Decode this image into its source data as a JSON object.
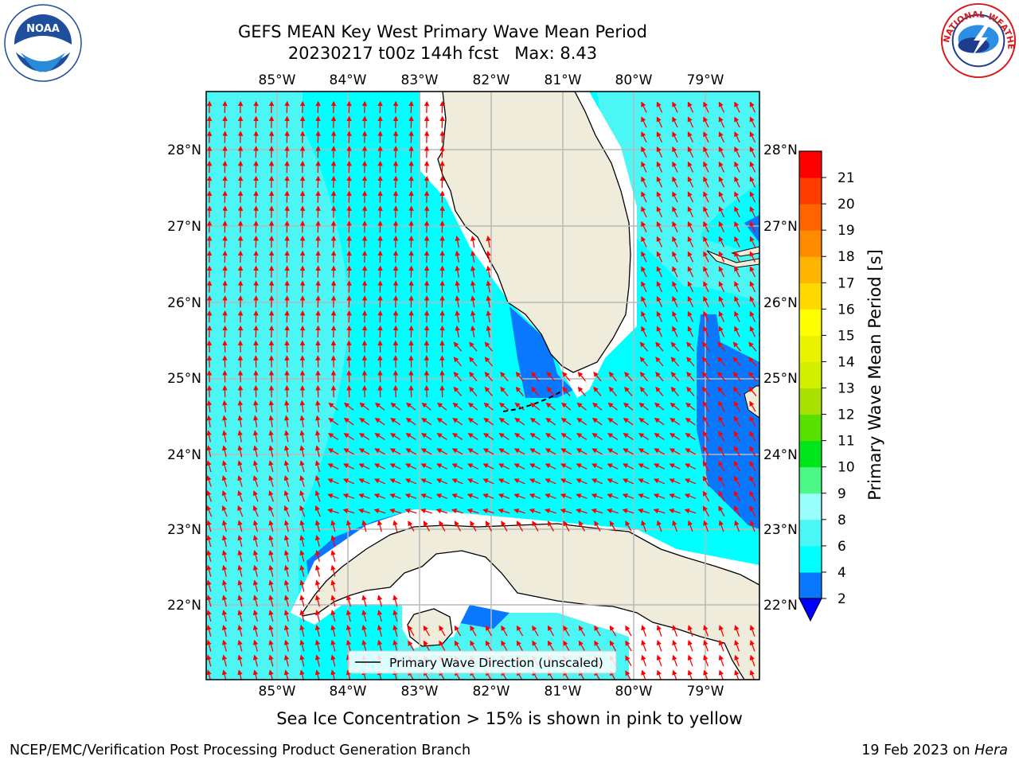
{
  "header": {
    "title_line1": "GEFS MEAN Key West Primary Wave Mean Period",
    "title_line2": "20230217 t00z 144h fcst   Max: 8.43"
  },
  "map": {
    "lon_labels": [
      "85°W",
      "84°W",
      "83°W",
      "82°W",
      "81°W",
      "80°W",
      "79°W"
    ],
    "lat_labels": [
      "28°N",
      "27°N",
      "26°N",
      "25°N",
      "24°N",
      "23°N",
      "22°N"
    ],
    "legend_label": "Primary Wave Direction (unscaled)",
    "land_color": "#efecdc",
    "ocean_main_color": "#00ffff",
    "ocean_low_color": "#0a77ff",
    "ocean_mid_color": "#4cf6f4",
    "arrow_color": "#ff0000"
  },
  "colorbar": {
    "label": "Primary Wave Mean Period [s]",
    "ticks": [
      "2",
      "4",
      "6",
      "8",
      "9",
      "10",
      "11",
      "12",
      "13",
      "14",
      "15",
      "16",
      "17",
      "18",
      "19",
      "20",
      "21"
    ],
    "colors": [
      "#0a77ff",
      "#00ffff",
      "#4cf6f4",
      "#98fffa",
      "#4cf888",
      "#00e61c",
      "#58e000",
      "#a8e000",
      "#d2ef00",
      "#eaf200",
      "#fffe00",
      "#ffd800",
      "#ffb400",
      "#ff8c00",
      "#ff6400",
      "#ff3c00",
      "#ff0000"
    ],
    "under_color": "#0000ff"
  },
  "footer": {
    "sea_ice_note": "Sea Ice Concentration > 15% is shown in pink to yellow",
    "credit": "NCEP/EMC/Verification Post Processing Product Generation Branch",
    "date": "19 Feb 2023 on ",
    "host": "Hera"
  },
  "logos": {
    "noaa_text": "NOAA",
    "nws_text": "NATIONAL WEATHER SERVICE"
  }
}
